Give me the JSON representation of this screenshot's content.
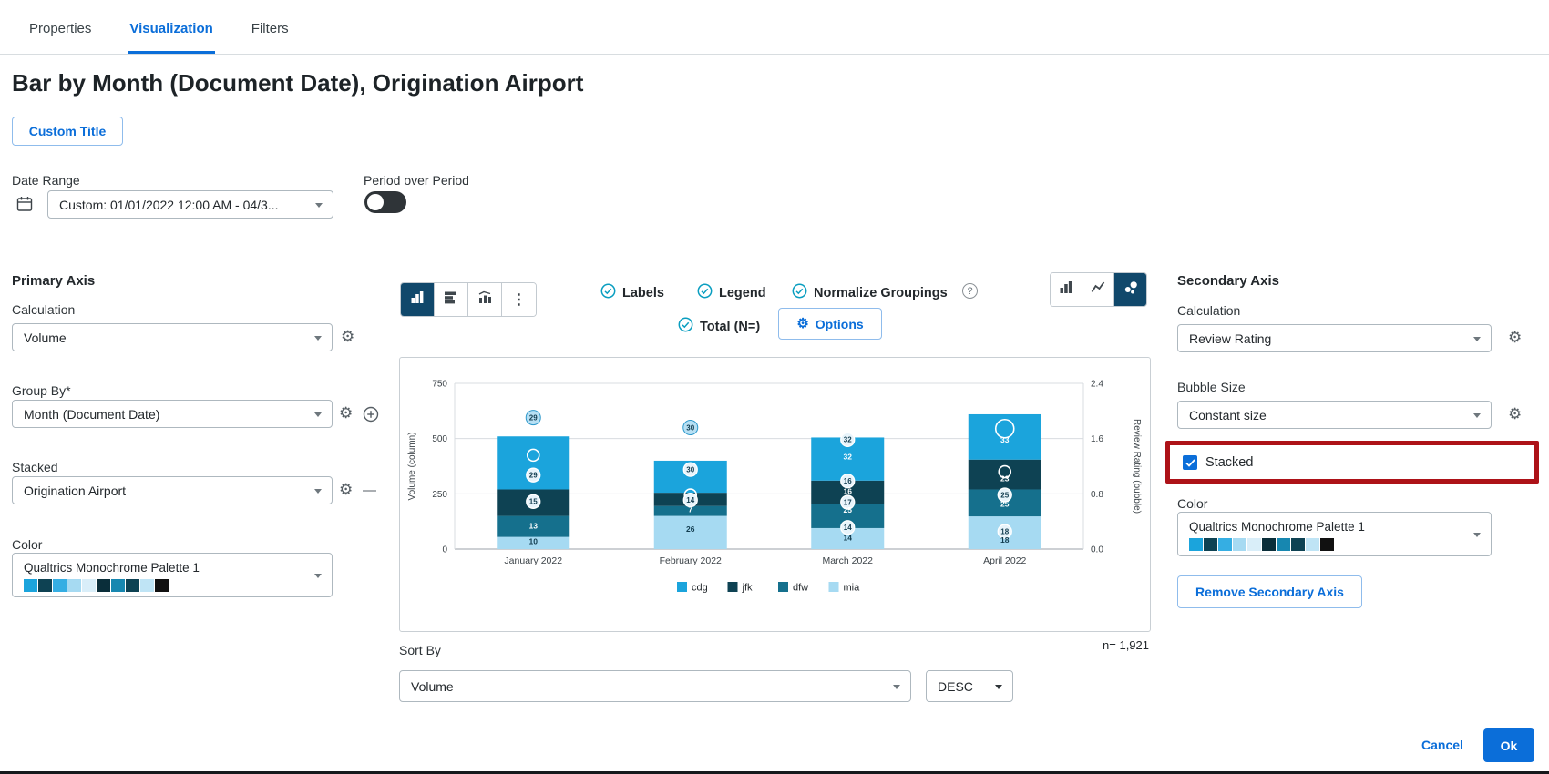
{
  "tabs": [
    {
      "label": "Properties",
      "active": false
    },
    {
      "label": "Visualization",
      "active": true
    },
    {
      "label": "Filters",
      "active": false
    }
  ],
  "page": {
    "title": "Bar by Month (Document Date), Origination Airport",
    "custom_title_button": "Custom Title"
  },
  "date_range": {
    "label": "Date Range",
    "value": "Custom: 01/01/2022 12:00 AM - 04/3..."
  },
  "period_over_period": {
    "label": "Period over Period",
    "enabled": false
  },
  "primary_axis": {
    "title": "Primary Axis",
    "calculation_label": "Calculation",
    "calculation_value": "Volume",
    "group_by_label": "Group By*",
    "group_by_value": "Month (Document Date)",
    "stacked_label": "Stacked",
    "stacked_value": "Origination Airport",
    "color_label": "Color",
    "color_value": "Qualtrics Monochrome Palette 1"
  },
  "chart_controls": {
    "left_toolbar": [
      "vertical-bar-chart",
      "horizontal-bar-chart",
      "combo-chart",
      "more-options"
    ],
    "toggles": [
      {
        "label": "Labels",
        "checked": true
      },
      {
        "label": "Legend",
        "checked": true
      },
      {
        "label": "Normalize Groupings",
        "checked": true
      },
      {
        "label": "Total (N=)",
        "checked": true
      }
    ],
    "has_help_icon": true,
    "options_button": "Options",
    "right_toolbar": [
      {
        "name": "bar-chart",
        "active": false
      },
      {
        "name": "line-chart",
        "active": false
      },
      {
        "name": "bubble-chart",
        "active": true
      }
    ]
  },
  "chart_data": {
    "type": "bar",
    "subtype": "stacked column with bubble overlay, dual axis",
    "categories": [
      "January 2022",
      "February 2022",
      "March 2022",
      "April 2022"
    ],
    "series_bottom_to_top": [
      {
        "name": "mia",
        "color": "#a6daf2",
        "values": [
          55,
          150,
          95,
          148
        ]
      },
      {
        "name": "dfw",
        "color": "#15708d",
        "values": [
          95,
          45,
          110,
          122
        ]
      },
      {
        "name": "jfk",
        "color": "#0e4253",
        "values": [
          120,
          60,
          105,
          135
        ]
      },
      {
        "name": "cdg",
        "color": "#1ba4dc",
        "values": [
          240,
          145,
          195,
          205
        ]
      }
    ],
    "bar_totals": [
      510,
      400,
      505,
      610
    ],
    "marks": [
      {
        "category": "January 2022",
        "items": [
          {
            "label": "29",
            "v": 595,
            "style": "bubble"
          },
          {
            "label": "",
            "v": 425,
            "style": "ring"
          },
          {
            "label": "29",
            "v": 335,
            "style": "badge"
          },
          {
            "label": "15",
            "v": 215,
            "style": "badge"
          },
          {
            "label": "13",
            "v": 105,
            "style": "text"
          },
          {
            "label": "10",
            "v": 35,
            "style": "text-dark"
          }
        ]
      },
      {
        "category": "February 2022",
        "items": [
          {
            "label": "30",
            "v": 550,
            "style": "bubble"
          },
          {
            "label": "30",
            "v": 360,
            "style": "badge"
          },
          {
            "label": "",
            "v": 245,
            "style": "ring"
          },
          {
            "label": "14",
            "v": 222,
            "style": "badge"
          },
          {
            "label": "7",
            "v": 180,
            "style": "text"
          },
          {
            "label": "26",
            "v": 90,
            "style": "text-dark"
          }
        ]
      },
      {
        "category": "March 2022",
        "items": [
          {
            "label": "32",
            "v": 495,
            "style": "badge"
          },
          {
            "label": "32",
            "v": 418,
            "style": "text"
          },
          {
            "label": "16",
            "v": 308,
            "style": "badge"
          },
          {
            "label": "16",
            "v": 262,
            "style": "text"
          },
          {
            "label": "17",
            "v": 212,
            "style": "badge"
          },
          {
            "label": "25",
            "v": 178,
            "style": "text"
          },
          {
            "label": "14",
            "v": 98,
            "style": "badge"
          },
          {
            "label": "14",
            "v": 52,
            "style": "text-dark"
          }
        ]
      },
      {
        "category": "April 2022",
        "items": [
          {
            "label": "",
            "v": 545,
            "style": "ring-large"
          },
          {
            "label": "33",
            "v": 495,
            "style": "text"
          },
          {
            "label": "",
            "v": 350,
            "style": "ring"
          },
          {
            "label": "23",
            "v": 320,
            "style": "text"
          },
          {
            "label": "25",
            "v": 245,
            "style": "badge"
          },
          {
            "label": "25",
            "v": 205,
            "style": "text"
          },
          {
            "label": "18",
            "v": 80,
            "style": "badge"
          },
          {
            "label": "18",
            "v": 42,
            "style": "text-dark"
          }
        ]
      }
    ],
    "left_axis": {
      "label": "Volume (column)",
      "ticks": [
        "0",
        "250",
        "500",
        "750"
      ],
      "max": 750
    },
    "right_axis": {
      "label": "Review Rating (bubble)",
      "ticks": [
        "0.0",
        "0.8",
        "1.6",
        "2.4"
      ],
      "max": 2.4
    },
    "legend": [
      {
        "label": "cdg",
        "color": "#1ba4dc"
      },
      {
        "label": "jfk",
        "color": "#0e4253"
      },
      {
        "label": "dfw",
        "color": "#15708d"
      },
      {
        "label": "mia",
        "color": "#a6daf2"
      }
    ],
    "n_label": "n= 1,921"
  },
  "sort_by": {
    "label": "Sort By",
    "value": "Volume",
    "direction": "DESC"
  },
  "secondary_axis": {
    "title": "Secondary Axis",
    "calculation_label": "Calculation",
    "calculation_value": "Review Rating",
    "bubble_size_label": "Bubble Size",
    "bubble_size_value": "Constant size",
    "stacked_label": "Stacked",
    "stacked_checked": true,
    "color_label": "Color",
    "color_value": "Qualtrics Monochrome Palette 1",
    "remove_button": "Remove Secondary Axis"
  },
  "footer": {
    "cancel": "Cancel",
    "ok": "Ok"
  },
  "palette_swatches": [
    "#1ba4dc",
    "#0e4253",
    "#35aee3",
    "#a6daf2",
    "#d9eef9",
    "#0a2e3a",
    "#1787b0",
    "#0e4253",
    "#bfe4f5",
    "#111111"
  ],
  "accent_colors": {
    "link_blue": "#0b6ed9",
    "active_toolbar": "#10486b",
    "check_teal": "#0a9ec0",
    "highlight_red": "#ad1218"
  },
  "icons": {
    "gear": "⚙",
    "kebab": "⋮",
    "minus": "—",
    "help": "?"
  }
}
